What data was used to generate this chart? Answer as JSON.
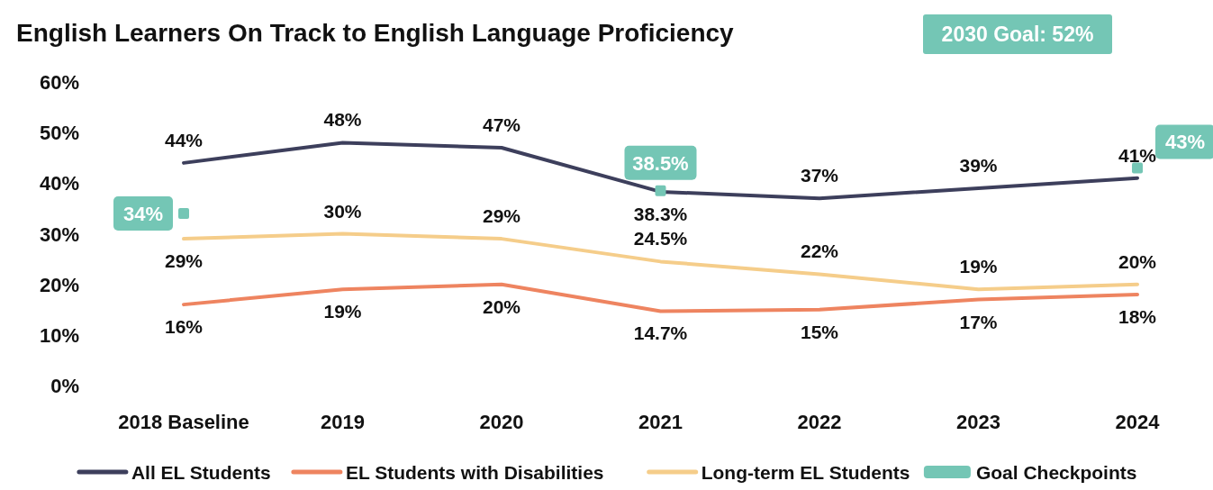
{
  "chart_data": {
    "type": "line",
    "title": "English Learners On Track to English Language Proficiency",
    "categories": [
      "2018 Baseline",
      "2019",
      "2020",
      "2021",
      "2022",
      "2023",
      "2024"
    ],
    "series": [
      {
        "name": "All EL Students",
        "color": "#3d3f5c",
        "values": [
          44,
          48,
          47,
          38.3,
          37,
          39,
          41
        ],
        "value_labels": [
          "44%",
          "48%",
          "47%",
          "38.3%",
          "37%",
          "39%",
          "41%"
        ]
      },
      {
        "name": "EL Students with Disabilities",
        "color": "#ee8460",
        "values": [
          16,
          19,
          20,
          14.7,
          15,
          17,
          18
        ],
        "value_labels": [
          "16%",
          "19%",
          "20%",
          "14.7%",
          "15%",
          "17%",
          "18%"
        ]
      },
      {
        "name": "Long-term EL Students",
        "color": "#f5cd8a",
        "values": [
          29,
          30,
          29,
          24.5,
          22,
          19,
          20
        ],
        "value_labels": [
          "29%",
          "30%",
          "29%",
          "24.5%",
          "22%",
          "19%",
          "20%"
        ]
      },
      {
        "name": "Goal Checkpoints",
        "color": "#74c6b5",
        "type": "scatter",
        "marker": "square",
        "values": [
          34,
          null,
          null,
          38.5,
          null,
          null,
          43
        ],
        "value_labels": [
          "34%",
          null,
          null,
          "38.5%",
          null,
          null,
          "43%"
        ]
      }
    ],
    "ylim": [
      0,
      60
    ],
    "yticks": [
      {
        "value": 0,
        "label": "0%"
      },
      {
        "value": 10,
        "label": "10%"
      },
      {
        "value": 20,
        "label": "20%"
      },
      {
        "value": 30,
        "label": "30%"
      },
      {
        "value": 40,
        "label": "40%"
      },
      {
        "value": 50,
        "label": "50%"
      },
      {
        "value": 60,
        "label": "60%"
      }
    ],
    "annotations": [
      "2030 Goal: 52%"
    ],
    "grid": false,
    "legend": "bottom",
    "marker": "none",
    "line_style": "solid"
  }
}
